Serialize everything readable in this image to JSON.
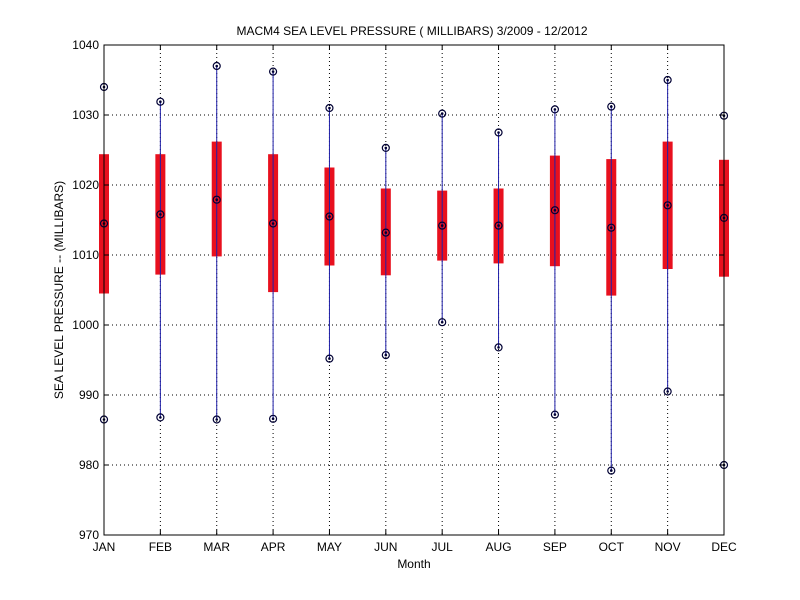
{
  "chart_data": {
    "type": "box",
    "title": "MACM4  SEA LEVEL PRESSURE ( MILLIBARS) 3/2009 - 12/2012",
    "xlabel": "Month",
    "ylabel": "SEA LEVEL PRESSURE -- (MILLIBARS)",
    "ylim": [
      970,
      1040
    ],
    "yticks": [
      970,
      980,
      990,
      1000,
      1010,
      1020,
      1030,
      1040
    ],
    "grid": true,
    "categories": [
      "JAN",
      "FEB",
      "MAR",
      "APR",
      "MAY",
      "JUN",
      "JUL",
      "AUG",
      "SEP",
      "OCT",
      "NOV",
      "DEC"
    ],
    "series": [
      {
        "min": 986.5,
        "q1": 1004.5,
        "mean": 1014.5,
        "q3": 1024.4,
        "max": 1034.0
      },
      {
        "min": 986.8,
        "q1": 1007.2,
        "mean": 1015.8,
        "q3": 1024.4,
        "max": 1031.9
      },
      {
        "min": 986.5,
        "q1": 1009.8,
        "mean": 1017.9,
        "q3": 1026.2,
        "max": 1037.0
      },
      {
        "min": 986.6,
        "q1": 1004.7,
        "mean": 1014.5,
        "q3": 1024.4,
        "max": 1036.2
      },
      {
        "min": 995.2,
        "q1": 1008.5,
        "mean": 1015.5,
        "q3": 1022.5,
        "max": 1031.0
      },
      {
        "min": 995.7,
        "q1": 1007.1,
        "mean": 1013.2,
        "q3": 1019.5,
        "max": 1025.3
      },
      {
        "min": 1000.4,
        "q1": 1009.2,
        "mean": 1014.2,
        "q3": 1019.2,
        "max": 1030.2
      },
      {
        "min": 996.8,
        "q1": 1008.8,
        "mean": 1014.2,
        "q3": 1019.5,
        "max": 1027.5
      },
      {
        "min": 987.2,
        "q1": 1008.4,
        "mean": 1016.4,
        "q3": 1024.2,
        "max": 1030.8
      },
      {
        "min": 979.2,
        "q1": 1004.2,
        "mean": 1013.9,
        "q3": 1023.7,
        "max": 1031.2
      },
      {
        "min": 990.5,
        "q1": 1008.0,
        "mean": 1017.1,
        "q3": 1026.2,
        "max": 1035.0
      },
      {
        "min": 980.0,
        "q1": 1006.9,
        "mean": 1015.3,
        "q3": 1023.6,
        "max": 1029.9
      }
    ],
    "colors": {
      "whisker": "#1f1fa8",
      "box": "#e8101e",
      "marker": "#000033",
      "grid": "#000000",
      "axis": "#000000"
    }
  }
}
